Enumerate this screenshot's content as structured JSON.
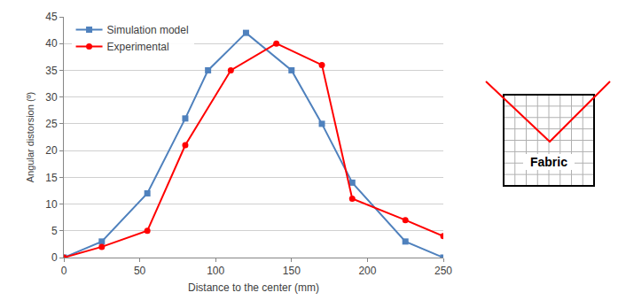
{
  "chart_data": {
    "type": "line",
    "x_label": "Distance to the center (mm)",
    "y_label": "Angular distorsion (º)",
    "series": [
      {
        "name": "Simulation model",
        "color": "#4f81bd",
        "marker": "square",
        "line_style": "solid",
        "x": [
          0,
          25,
          55,
          80,
          95,
          120,
          150,
          170,
          190,
          225,
          250
        ],
        "values": [
          0,
          3,
          12,
          26,
          35,
          42,
          35,
          25,
          14,
          3,
          0
        ]
      },
      {
        "name": "Experimental",
        "color": "#ff0000",
        "marker": "circle",
        "line_style": "solid",
        "x": [
          0,
          25,
          55,
          80,
          110,
          140,
          170,
          190,
          225,
          250
        ],
        "values": [
          0,
          2,
          5,
          21,
          35,
          40,
          36,
          11,
          7,
          4
        ]
      }
    ],
    "xlim": [
      0,
      250
    ],
    "xticks": [
      0,
      50,
      100,
      150,
      200,
      250
    ],
    "ylim": [
      0,
      45
    ],
    "yticks": [
      0,
      5,
      10,
      15,
      20,
      25,
      30,
      35,
      40,
      45
    ],
    "grid": true,
    "legend": "upper left",
    "annotations": [
      "Fabric"
    ]
  }
}
